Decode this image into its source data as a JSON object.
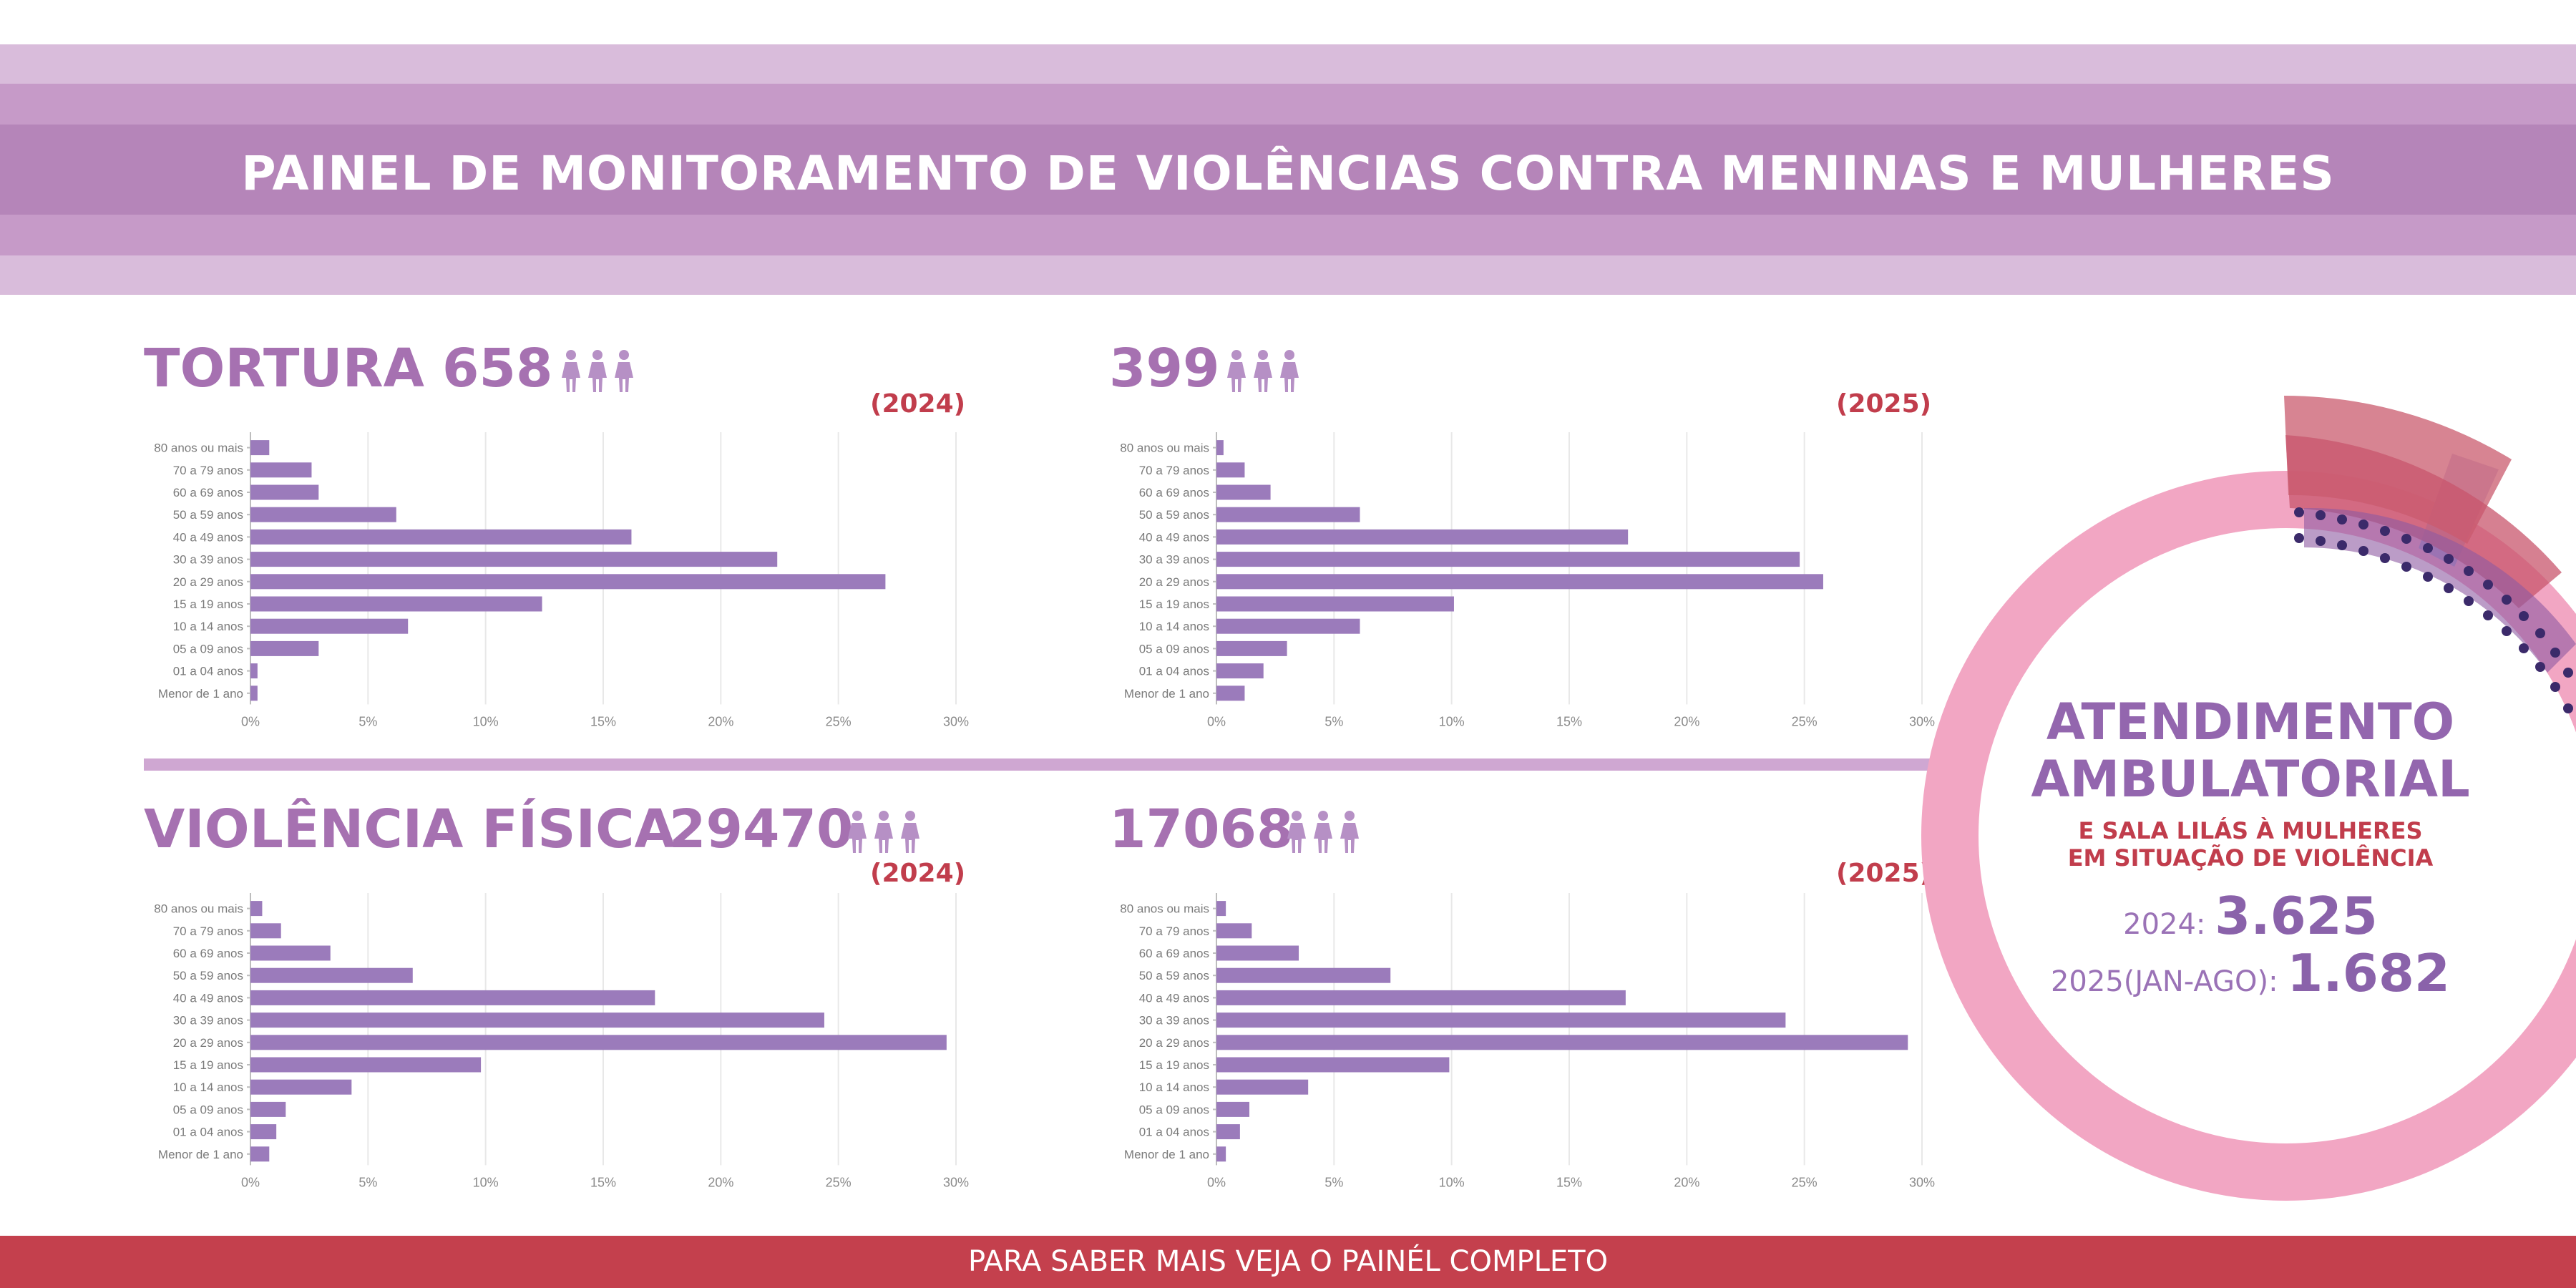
{
  "header": {
    "title": "PAINEL DE MONITORAMENTO DE VIOLÊNCIAS CONTRA MENINAS E MULHERES"
  },
  "sections": {
    "tortura": {
      "name": "TORTURA",
      "total_2024": "658",
      "total_2025": "399"
    },
    "violencia_fisica": {
      "name": "VIOLÊNCIA FÍSICA",
      "total_2024": "29470",
      "total_2025": "17068"
    }
  },
  "year_labels": {
    "y2024": "(2024)",
    "y2025": "(2025)"
  },
  "ambulatorial": {
    "title_line1": "ATENDIMENTO",
    "title_line2": "AMBULATORIAL",
    "subtitle_line1": "E SALA LILÁS À MULHERES",
    "subtitle_line2": "EM SITUAÇÃO DE VIOLÊNCIA",
    "stat_2024_label": "2024:",
    "stat_2024_value": "3.625",
    "stat_2025_label": "2025(JAN-AGO):",
    "stat_2025_value": "1.682"
  },
  "footer": {
    "text": "PARA SABER MAIS VEJA O PAINÉL COMPLETO"
  },
  "colors": {
    "bar": "#9b7bbb",
    "accent_purple": "#a671b1",
    "accent_red": "#c13d4c",
    "ring_pink": "#f2a6c3"
  },
  "chart_data": [
    {
      "id": "tortura-2024",
      "type": "bar",
      "orientation": "horizontal",
      "title": "TORTURA (2024)",
      "categories": [
        "80 anos ou mais",
        "70 a 79 anos",
        "60 a 69 anos",
        "50 a 59 anos",
        "40 a 49 anos",
        "30 a 39 anos",
        "20 a 29 anos",
        "15 a 19 anos",
        "10 a 14 anos",
        "05 a 09 anos",
        "01 a 04 anos",
        "Menor de 1 ano"
      ],
      "values": [
        0.8,
        2.6,
        2.9,
        6.2,
        16.2,
        22.4,
        27.0,
        12.4,
        6.7,
        2.9,
        0.3,
        0.3
      ],
      "x_ticks": [
        "0%",
        "5%",
        "10%",
        "15%",
        "20%",
        "25%",
        "30%"
      ],
      "xlim": [
        0,
        30
      ],
      "grid": true
    },
    {
      "id": "tortura-2025",
      "type": "bar",
      "orientation": "horizontal",
      "title": "TORTURA (2025)",
      "categories": [
        "80 anos ou mais",
        "70 a 79 anos",
        "60 a 69 anos",
        "50 a 59 anos",
        "40 a 49 anos",
        "30 a 39 anos",
        "20 a 29 anos",
        "15 a 19 anos",
        "10 a 14 anos",
        "05 a 09 anos",
        "01 a 04 anos",
        "Menor de 1 ano"
      ],
      "values": [
        0.3,
        1.2,
        2.3,
        6.1,
        17.5,
        24.8,
        25.8,
        10.1,
        6.1,
        3.0,
        2.0,
        1.2
      ],
      "x_ticks": [
        "0%",
        "5%",
        "10%",
        "15%",
        "20%",
        "25%",
        "30%"
      ],
      "xlim": [
        0,
        30
      ],
      "grid": true
    },
    {
      "id": "violencia-2024",
      "type": "bar",
      "orientation": "horizontal",
      "title": "VIOLÊNCIA FÍSICA (2024)",
      "categories": [
        "80 anos ou mais",
        "70 a 79 anos",
        "60 a 69 anos",
        "50 a 59 anos",
        "40 a 49 anos",
        "30 a 39 anos",
        "20 a 29 anos",
        "15 a 19 anos",
        "10 a 14 anos",
        "05 a 09 anos",
        "01 a 04 anos",
        "Menor de 1 ano"
      ],
      "values": [
        0.5,
        1.3,
        3.4,
        6.9,
        17.2,
        24.4,
        29.6,
        9.8,
        4.3,
        1.5,
        1.1,
        0.8
      ],
      "x_ticks": [
        "0%",
        "5%",
        "10%",
        "15%",
        "20%",
        "25%",
        "30%"
      ],
      "xlim": [
        0,
        30
      ],
      "grid": true
    },
    {
      "id": "violencia-2025",
      "type": "bar",
      "orientation": "horizontal",
      "title": "VIOLÊNCIA FÍSICA (2025)",
      "categories": [
        "80 anos ou mais",
        "70 a 79 anos",
        "60 a 69 anos",
        "50 a 59 anos",
        "40 a 49 anos",
        "30 a 39 anos",
        "20 a 29 anos",
        "15 a 19 anos",
        "10 a 14 anos",
        "05 a 09 anos",
        "01 a 04 anos",
        "Menor de 1 ano"
      ],
      "values": [
        0.4,
        1.5,
        3.5,
        7.4,
        17.4,
        24.2,
        29.4,
        9.9,
        3.9,
        1.4,
        1.0,
        0.4
      ],
      "x_ticks": [
        "0%",
        "5%",
        "10%",
        "15%",
        "20%",
        "25%",
        "30%"
      ],
      "xlim": [
        0,
        30
      ],
      "grid": true
    }
  ]
}
